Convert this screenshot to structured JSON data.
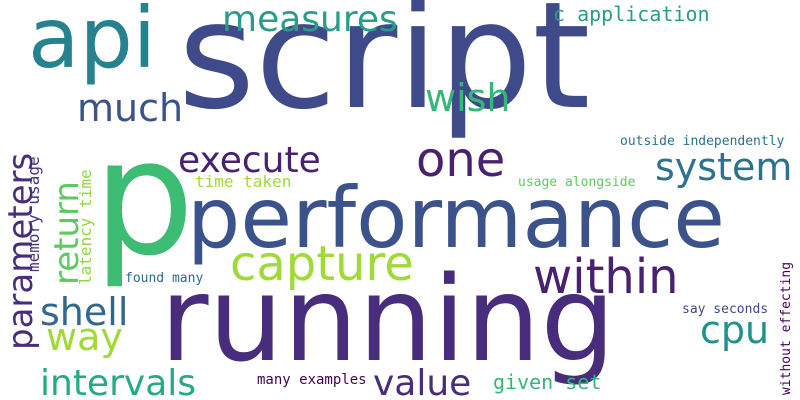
{
  "words": [
    {
      "text": "script",
      "color": "#3f4a8a"
    },
    {
      "text": "p",
      "color": "#3dbc74"
    },
    {
      "text": "running",
      "color": "#472d7b"
    },
    {
      "text": "performance",
      "color": "#3b528b"
    },
    {
      "text": "api",
      "color": "#26828e"
    },
    {
      "text": "measures",
      "color": "#2a9d8a"
    },
    {
      "text": "c application",
      "color": "#2a9d8a"
    },
    {
      "text": "wish",
      "color": "#35b779"
    },
    {
      "text": "much",
      "color": "#3b528b"
    },
    {
      "text": "one",
      "color": "#482173"
    },
    {
      "text": "execute",
      "color": "#482173"
    },
    {
      "text": "system",
      "color": "#2c728e"
    },
    {
      "text": "capture",
      "color": "#a0da39"
    },
    {
      "text": "within",
      "color": "#482173"
    },
    {
      "text": "shell",
      "color": "#31688e"
    },
    {
      "text": "way",
      "color": "#a0da39"
    },
    {
      "text": "cpu",
      "color": "#21918c"
    },
    {
      "text": "intervals",
      "color": "#25ab82"
    },
    {
      "text": "value",
      "color": "#472d7b"
    },
    {
      "text": "given set",
      "color": "#35b779"
    },
    {
      "text": "many examples",
      "color": "#440154"
    },
    {
      "text": "time taken",
      "color": "#a0da39"
    },
    {
      "text": "usage alongside",
      "color": "#5ec962"
    },
    {
      "text": "outside independently",
      "color": "#2c728e"
    },
    {
      "text": "found many",
      "color": "#31688e"
    },
    {
      "text": "say seconds",
      "color": "#3e4989"
    },
    {
      "text": "parameters",
      "color": "#472d7b"
    },
    {
      "text": "return",
      "color": "#5ec962"
    },
    {
      "text": "memory usage",
      "color": "#46327e"
    },
    {
      "text": "latency time",
      "color": "#90d743"
    },
    {
      "text": "without effecting",
      "color": "#440154"
    }
  ]
}
